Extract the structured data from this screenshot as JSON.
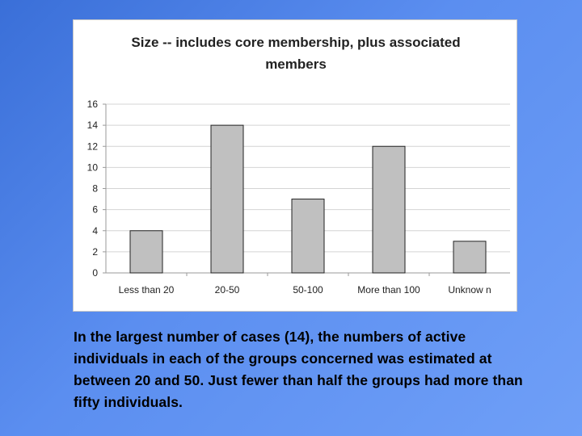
{
  "chart_data": {
    "type": "bar",
    "title": "Size -- includes core membership, plus associated members",
    "categories": [
      "Less than 20",
      "20-50",
      "50-100",
      "More than 100",
      "Unknow n"
    ],
    "values": [
      4,
      14,
      7,
      12,
      3
    ],
    "xlabel": "",
    "ylabel": "",
    "ylim": [
      0,
      16
    ],
    "yticks": [
      0,
      2,
      4,
      6,
      8,
      10,
      12,
      14,
      16
    ],
    "grid": true,
    "legend": "none",
    "bar_color": "#c0c0c0"
  },
  "caption": "In the largest number of cases (14), the numbers of active individuals in each of the groups concerned was estimated at between 20 and 50. Just fewer than half the groups had more than fifty individuals."
}
